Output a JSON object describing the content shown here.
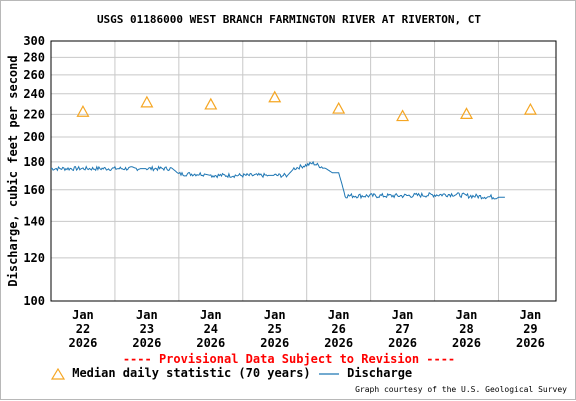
{
  "title": "USGS 01186000 WEST BRANCH FARMINGTON RIVER AT RIVERTON, CT",
  "provisional": "---- Provisional Data Subject to Revision ----",
  "legend": {
    "median_label": "Median daily statistic (70 years)",
    "discharge_label": "Discharge"
  },
  "courtesy": "Graph courtesy of the U.S. Geological Survey",
  "colors": {
    "discharge": "#1f77b4",
    "median": "#f5a623",
    "grid": "#c8c8c8",
    "provisional": "#ff0000"
  },
  "chart_data": {
    "type": "line",
    "ylabel": "Discharge, cubic feet per second",
    "yscale": "log",
    "ylim": [
      100,
      300
    ],
    "yticks": [
      100,
      120,
      140,
      160,
      180,
      200,
      220,
      240,
      260,
      280,
      300
    ],
    "xticks": [
      [
        "Jan",
        "22",
        "2026"
      ],
      [
        "Jan",
        "23",
        "2026"
      ],
      [
        "Jan",
        "24",
        "2026"
      ],
      [
        "Jan",
        "25",
        "2026"
      ],
      [
        "Jan",
        "26",
        "2026"
      ],
      [
        "Jan",
        "27",
        "2026"
      ],
      [
        "Jan",
        "28",
        "2026"
      ],
      [
        "Jan",
        "29",
        "2026"
      ]
    ],
    "xlim": [
      -0.5,
      7.4
    ],
    "grid": true,
    "legend_position": "bottom",
    "median_daily": {
      "name": "Median daily statistic (70 years)",
      "day": [
        0,
        1,
        2,
        3,
        4,
        5,
        6,
        7
      ],
      "values": [
        222,
        231,
        229,
        236,
        225,
        218,
        220,
        224
      ]
    },
    "discharge": {
      "name": "Discharge",
      "day": [
        -0.5,
        0.9,
        1.0,
        1.4,
        1.5,
        1.9,
        2.0,
        2.9,
        3.0,
        3.2,
        3.3,
        3.6,
        3.8,
        3.9,
        4.0,
        4.1,
        5.0,
        5.8,
        6.0,
        6.5,
        6.6
      ],
      "values": [
        175,
        175,
        175,
        175,
        171,
        171,
        170,
        170,
        170,
        170,
        175,
        179,
        175,
        172,
        172,
        156,
        156,
        157,
        156,
        155,
        155
      ]
    }
  }
}
